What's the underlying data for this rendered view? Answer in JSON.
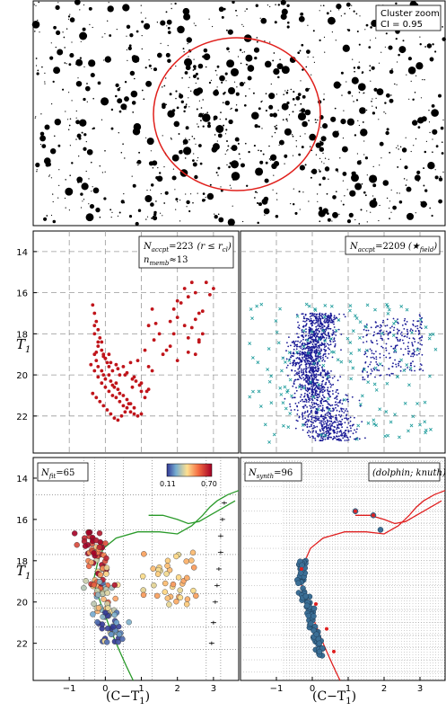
{
  "top_panel": {
    "label_line1": "Cluster zoom",
    "label_line2": "CI = 0.95"
  },
  "panels": {
    "cluster_region": {
      "count_label": "N",
      "count_sub": "accpt",
      "count_value": "=223",
      "count_tail": "(r ≤ r",
      "count_tail_sub": "cl",
      "count_tail_end": ")",
      "memb_label": "n",
      "memb_sub": "memb",
      "memb_value": "≈13"
    },
    "field_region": {
      "count_label": "N",
      "count_sub": "accpt",
      "count_value": "=2209",
      "count_tail": "(★",
      "count_tail_sub": "field",
      "count_tail_end": ")"
    },
    "fit_panel": {
      "count_label": "N",
      "count_sub": "fit",
      "count_value": "=65",
      "colorbar_min": "0.11",
      "colorbar_max": "0.70"
    },
    "synth_panel": {
      "count_label": "N",
      "count_sub": "synth",
      "count_value": "=96",
      "tag": "(dolphin; knuth)"
    }
  },
  "axes": {
    "ylabel": "T",
    "ylabel_sub": "1",
    "xlabel": "(C−T",
    "xlabel_sub": "1",
    "xlabel_end": ")",
    "y_ticks": [
      "14",
      "16",
      "18",
      "20",
      "22"
    ],
    "x_ticks": [
      "−1",
      "0",
      "1",
      "2",
      "3"
    ]
  },
  "colors": {
    "circle": "#e0201c",
    "cluster_points": "#c0141a",
    "field_points": "#1a1a96",
    "field_cross": "#1a9a9a",
    "isochrone_fit": "#2a9a2a",
    "isochrone_synth": "#e02020",
    "synth_points": "#3b6f96"
  },
  "chart_data": [
    {
      "type": "scatter",
      "title": "Cluster zoom",
      "note": "CI = 0.95",
      "description_series": "star field"
    },
    {
      "type": "scatter",
      "xlabel": "(C−T1)",
      "ylabel": "T1",
      "xlim": [
        -2,
        3.7
      ],
      "ylim": [
        23.8,
        13.0
      ],
      "series": [
        {
          "marker": "dot",
          "color": "#c0141a",
          "x": [
            -0.35,
            -0.3,
            -0.25,
            -0.2,
            -0.15,
            -0.3,
            -0.2,
            -0.1,
            -0.05,
            0.0,
            0.05,
            0.1,
            -0.3,
            -0.25,
            -0.2,
            -0.1,
            -0.05,
            0.0,
            0.1,
            0.15,
            0.2,
            0.25,
            0.3,
            0.35,
            0.4,
            0.5,
            0.6,
            0.7,
            0.8,
            -0.4,
            -0.3,
            -0.2,
            -0.1,
            0.0,
            0.1,
            0.2,
            0.3,
            0.4,
            0.5,
            0.6,
            0.7,
            0.8,
            0.9,
            1.0,
            -0.35,
            -0.25,
            -0.15,
            -0.05,
            0.05,
            0.15,
            0.25,
            0.35,
            0.45,
            0.55,
            0.65,
            0.75,
            0.85,
            -0.2,
            0.0,
            0.2,
            0.4,
            0.6,
            0.8,
            1.0,
            1.2,
            -0.3,
            -0.1,
            0.1,
            0.3,
            0.5,
            0.7,
            0.9,
            -0.25,
            -0.05,
            0.15,
            0.35,
            0.55,
            0.75,
            0.95,
            1.15,
            1.1,
            1.2,
            1.3,
            1.35,
            1.4,
            1.5,
            1.6,
            1.7,
            1.8,
            1.9,
            2.0,
            2.1,
            2.2,
            2.3,
            2.4,
            2.5,
            2.6,
            2.7,
            1.8,
            1.9,
            2.0,
            2.2,
            2.3,
            2.5,
            2.6,
            2.7,
            1.0,
            1.1,
            1.2,
            1.3,
            2.0,
            2.3,
            2.5,
            2.6,
            2.4,
            2.8,
            2.9,
            3.0
          ],
          "y": [
            16.6,
            17.0,
            17.4,
            17.8,
            18.2,
            18.0,
            18.4,
            18.8,
            19.0,
            19.2,
            19.4,
            19.6,
            19.0,
            19.3,
            19.6,
            19.8,
            20.0,
            20.2,
            20.0,
            20.3,
            20.5,
            20.6,
            20.4,
            20.7,
            20.9,
            21.0,
            21.2,
            21.4,
            21.6,
            19.5,
            19.8,
            20.1,
            20.4,
            20.6,
            20.8,
            21.0,
            21.1,
            21.3,
            21.5,
            21.6,
            21.8,
            21.9,
            22.0,
            21.9,
            20.9,
            21.1,
            21.3,
            21.5,
            21.7,
            21.9,
            22.1,
            22.2,
            22.0,
            21.8,
            21.4,
            20.6,
            20.3,
            18.6,
            19.2,
            19.8,
            20.0,
            19.9,
            20.1,
            20.4,
            20.7,
            17.6,
            18.4,
            19.0,
            19.5,
            19.6,
            19.4,
            19.3,
            18.9,
            19.1,
            19.4,
            19.7,
            20.0,
            20.2,
            20.5,
            20.8,
            18.8,
            17.6,
            16.8,
            18.3,
            17.5,
            18.0,
            19.0,
            18.8,
            18.6,
            18.0,
            17.2,
            16.5,
            15.8,
            16.2,
            15.5,
            16.0,
            17.0,
            18.0,
            17.4,
            16.8,
            16.4,
            17.6,
            18.2,
            17.3,
            18.4,
            16.9,
            20.8,
            21.1,
            19.6,
            19.8,
            19.3,
            18.9,
            19.0,
            18.3,
            17.7,
            15.5,
            16.1,
            15.8
          ]
        }
      ]
    },
    {
      "type": "scatter",
      "xlabel": "(C−T1)",
      "ylabel": "T1",
      "xlim": [
        -2,
        3.7
      ],
      "ylim": [
        23.8,
        13.0
      ],
      "series": [
        {
          "marker": "dot",
          "color": "#1a1a96",
          "note": "field stars (dense main sequence + giant branch)"
        },
        {
          "marker": "x",
          "color": "#1a9a9a",
          "note": "rejected stars"
        }
      ]
    },
    {
      "type": "scatter",
      "xlabel": "(C−T1)",
      "ylabel": "T1",
      "xlim": [
        -2,
        3.7
      ],
      "ylim": [
        23.8,
        13.0
      ],
      "colorbar": {
        "min": 0.11,
        "max": 0.7
      },
      "series": [
        {
          "marker": "circle",
          "colored_by": "membership probability"
        },
        {
          "marker": "line",
          "color": "#2a9a2a",
          "note": "best-fit isochrone"
        },
        {
          "marker": "errorbar",
          "color": "#000000",
          "x": [
            3.3,
            3.25,
            3.2,
            3.2,
            3.15,
            3.1,
            3.05,
            3.0,
            2.95
          ],
          "y": [
            15.2,
            16.0,
            16.8,
            17.6,
            18.4,
            19.2,
            20.0,
            21.0,
            22.0
          ]
        }
      ]
    },
    {
      "type": "scatter",
      "xlabel": "(C−T1)",
      "ylabel": "T1",
      "xlim": [
        -2,
        3.7
      ],
      "ylim": [
        23.8,
        13.0
      ],
      "series": [
        {
          "marker": "circle",
          "color": "#3b6f96",
          "note": "synthetic cluster"
        },
        {
          "marker": "line",
          "color": "#e02020",
          "note": "isochrone"
        }
      ]
    }
  ]
}
